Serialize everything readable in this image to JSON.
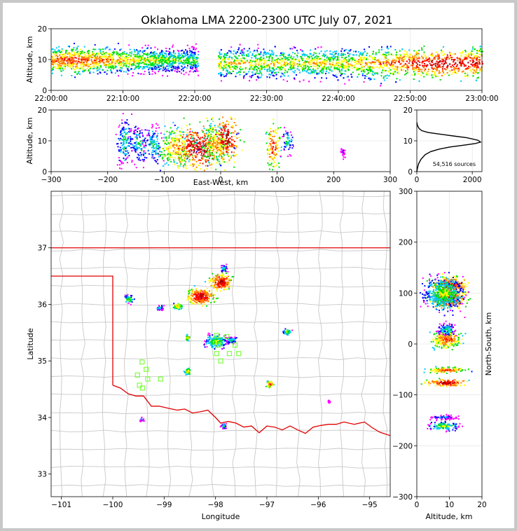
{
  "figure": {
    "title": "Oklahoma LMA 2200-2300 UTC July 07, 2021",
    "sources_label": "54,516 sources"
  },
  "colors": {
    "background": "#ffffff",
    "frame": "#c8c8c8",
    "state_border": "#e00000",
    "county_lines": "#c8c8c8",
    "station_marker": "#7dff40",
    "density_scale": [
      "#ff00ff",
      "#0000ff",
      "#00c8ff",
      "#00e000",
      "#ffff00",
      "#ff8000",
      "#ff0000",
      "#a00000"
    ]
  },
  "chart_data": [
    {
      "id": "time_height",
      "type": "heatmap",
      "xlabel": "",
      "ylabel": "Altitude, km",
      "x_ticks": [
        "22:00:00",
        "22:10:00",
        "22:20:00",
        "22:30:00",
        "22:40:00",
        "22:50:00",
        "23:00:00"
      ],
      "x_minutes": [
        0,
        10,
        20,
        30,
        40,
        50,
        60
      ],
      "xlim_minutes": [
        0,
        60
      ],
      "y_ticks": [
        0,
        10,
        20
      ],
      "ylim": [
        0,
        20
      ],
      "data_gap_minutes": [
        20.4,
        23.2
      ],
      "series": [
        {
          "name": "band 22:00-22:20",
          "t_start": 0,
          "t_end": 20.4,
          "center_km": 10,
          "spread_km": 2.5,
          "peak_minute": 3,
          "peak_level": 6
        },
        {
          "name": "band 22:23-23:00",
          "t_start": 23.2,
          "t_end": 60,
          "center_km": 9,
          "spread_km": 3,
          "peak_minute": 55,
          "peak_level": 7
        }
      ]
    },
    {
      "id": "ew_height",
      "type": "heatmap",
      "xlabel": "East-West, km",
      "ylabel": "Altitude, km",
      "x_ticks": [
        -300,
        -200,
        -100,
        0,
        100,
        200,
        300
      ],
      "xlim": [
        -300,
        300
      ],
      "y_ticks": [
        0,
        10,
        20
      ],
      "ylim": [
        0,
        20
      ],
      "clusters": [
        {
          "x": -170,
          "z": 10,
          "w": 8,
          "h": 4,
          "level": 3
        },
        {
          "x": -145,
          "z": 9,
          "w": 8,
          "h": 3,
          "level": 3
        },
        {
          "x": -120,
          "z": 9,
          "w": 8,
          "h": 3,
          "level": 3
        },
        {
          "x": -80,
          "z": 8,
          "w": 18,
          "h": 3,
          "level": 5
        },
        {
          "x": -40,
          "z": 8,
          "w": 22,
          "h": 3.5,
          "level": 7
        },
        {
          "x": -10,
          "z": 9,
          "w": 15,
          "h": 3,
          "level": 5
        },
        {
          "x": 8,
          "z": 11,
          "w": 12,
          "h": 3.5,
          "level": 7
        },
        {
          "x": 92,
          "z": 9,
          "w": 6,
          "h": 4,
          "level": 6
        },
        {
          "x": 118,
          "z": 10,
          "w": 5,
          "h": 2,
          "level": 3
        },
        {
          "x": 215,
          "z": 6.5,
          "w": 2,
          "h": 1,
          "level": 1
        }
      ]
    },
    {
      "id": "altitude_histogram",
      "type": "line",
      "xlabel": "",
      "ylabel": "",
      "x_ticks": [
        0,
        2000
      ],
      "xlim": [
        0,
        2350
      ],
      "y_ticks": [
        0,
        10,
        20
      ],
      "ylim": [
        0,
        20
      ],
      "x": [
        0,
        20,
        60,
        150,
        300,
        500,
        800,
        1200,
        1700,
        2100,
        2300,
        2200,
        1800,
        1300,
        800,
        400,
        180,
        80,
        30,
        10,
        0
      ],
      "y": [
        0,
        1,
        2.5,
        4,
        5.5,
        6.5,
        7.3,
        8,
        8.6,
        9.1,
        9.6,
        10.2,
        11,
        11.6,
        12.2,
        12.7,
        13.3,
        14,
        14.8,
        15.5,
        16
      ]
    },
    {
      "id": "plan_view",
      "type": "heatmap",
      "xlabel": "Longitude",
      "ylabel": "Latitude",
      "x_ticks": [
        -101,
        -100,
        -99,
        -98,
        -97,
        -96,
        -95
      ],
      "xlim": [
        -101.2,
        -94.6
      ],
      "y_ticks": [
        33,
        34,
        35,
        36,
        37
      ],
      "ylim": [
        32.6,
        38.0
      ],
      "clusters": [
        {
          "lon": -97.9,
          "lat": 36.4,
          "w": 0.18,
          "h": 0.12,
          "level": 7
        },
        {
          "lon": -98.3,
          "lat": 36.15,
          "w": 0.22,
          "h": 0.12,
          "level": 7
        },
        {
          "lon": -97.85,
          "lat": 36.65,
          "w": 0.06,
          "h": 0.06,
          "level": 3
        },
        {
          "lon": -98.75,
          "lat": 35.98,
          "w": 0.08,
          "h": 0.05,
          "level": 5
        },
        {
          "lon": -99.1,
          "lat": 35.95,
          "w": 0.06,
          "h": 0.04,
          "level": 3
        },
        {
          "lon": -98.0,
          "lat": 35.35,
          "w": 0.18,
          "h": 0.1,
          "level": 4
        },
        {
          "lon": -97.7,
          "lat": 35.38,
          "w": 0.1,
          "h": 0.06,
          "level": 3
        },
        {
          "lon": -96.62,
          "lat": 35.52,
          "w": 0.08,
          "h": 0.05,
          "level": 4
        },
        {
          "lon": -98.55,
          "lat": 34.82,
          "w": 0.06,
          "h": 0.05,
          "level": 5
        },
        {
          "lon": -96.95,
          "lat": 34.6,
          "w": 0.06,
          "h": 0.05,
          "level": 6
        },
        {
          "lon": -98.55,
          "lat": 35.42,
          "w": 0.04,
          "h": 0.05,
          "level": 5
        },
        {
          "lon": -99.7,
          "lat": 36.1,
          "w": 0.08,
          "h": 0.06,
          "level": 4
        },
        {
          "lon": -97.85,
          "lat": 33.86,
          "w": 0.05,
          "h": 0.04,
          "level": 3
        },
        {
          "lon": -99.45,
          "lat": 33.98,
          "w": 0.03,
          "h": 0.03,
          "level": 2
        },
        {
          "lon": -95.8,
          "lat": 34.3,
          "w": 0.02,
          "h": 0.03,
          "level": 1
        }
      ],
      "stations": [
        {
          "lon": -97.98,
          "lat": 35.45
        },
        {
          "lon": -97.78,
          "lat": 35.43
        },
        {
          "lon": -97.95,
          "lat": 35.28
        },
        {
          "lon": -97.73,
          "lat": 35.13
        },
        {
          "lon": -97.55,
          "lat": 35.13
        },
        {
          "lon": -97.98,
          "lat": 35.13
        },
        {
          "lon": -97.9,
          "lat": 35.0
        },
        {
          "lon": -97.62,
          "lat": 35.28
        },
        {
          "lon": -99.43,
          "lat": 34.98
        },
        {
          "lon": -99.35,
          "lat": 34.85
        },
        {
          "lon": -99.52,
          "lat": 34.75
        },
        {
          "lon": -99.32,
          "lat": 34.68
        },
        {
          "lon": -99.07,
          "lat": 34.68
        },
        {
          "lon": -99.48,
          "lat": 34.57
        },
        {
          "lon": -99.42,
          "lat": 34.52
        }
      ],
      "state_border_ok": [
        [
          -103,
          37.0
        ],
        [
          -94.6,
          37.0
        ]
      ],
      "panhandle_line": [
        [
          -103,
          36.5
        ],
        [
          -100.0,
          36.5
        ],
        [
          -100.0,
          34.57
        ]
      ],
      "red_river": [
        [
          -100.0,
          34.57
        ],
        [
          -99.85,
          34.52
        ],
        [
          -99.7,
          34.42
        ],
        [
          -99.55,
          34.38
        ],
        [
          -99.4,
          34.38
        ],
        [
          -99.25,
          34.2
        ],
        [
          -99.1,
          34.2
        ],
        [
          -98.95,
          34.17
        ],
        [
          -98.75,
          34.13
        ],
        [
          -98.6,
          34.15
        ],
        [
          -98.45,
          34.08
        ],
        [
          -98.3,
          34.1
        ],
        [
          -98.15,
          34.13
        ],
        [
          -98.0,
          34.0
        ],
        [
          -97.9,
          33.9
        ],
        [
          -97.75,
          33.93
        ],
        [
          -97.6,
          33.9
        ],
        [
          -97.45,
          33.83
        ],
        [
          -97.3,
          33.85
        ],
        [
          -97.15,
          33.73
        ],
        [
          -97.0,
          33.85
        ],
        [
          -96.85,
          33.83
        ],
        [
          -96.7,
          33.78
        ],
        [
          -96.55,
          33.85
        ],
        [
          -96.4,
          33.78
        ],
        [
          -96.25,
          33.72
        ],
        [
          -96.1,
          33.83
        ],
        [
          -95.95,
          33.86
        ],
        [
          -95.8,
          33.88
        ],
        [
          -95.65,
          33.88
        ],
        [
          -95.5,
          33.92
        ],
        [
          -95.3,
          33.88
        ],
        [
          -95.1,
          33.92
        ],
        [
          -94.95,
          33.82
        ],
        [
          -94.8,
          33.74
        ],
        [
          -94.6,
          33.68
        ]
      ]
    },
    {
      "id": "ns_height",
      "type": "heatmap",
      "xlabel": "Altitude, km",
      "ylabel": "North-South, km",
      "x_ticks": [
        0,
        10,
        20
      ],
      "xlim": [
        0,
        20
      ],
      "y_ticks": [
        -300,
        -200,
        -100,
        0,
        100,
        200,
        300
      ],
      "ylim": [
        -300,
        300
      ],
      "clusters": [
        {
          "z": 10,
          "y": 115,
          "w": 3.5,
          "h": 12,
          "level": 7
        },
        {
          "z": 9.5,
          "y": 90,
          "w": 3.5,
          "h": 12,
          "level": 7
        },
        {
          "z": 8,
          "y": 100,
          "w": 4,
          "h": 22,
          "level": 4
        },
        {
          "z": 9,
          "y": 10,
          "w": 3,
          "h": 12,
          "level": 6
        },
        {
          "z": 9,
          "y": 30,
          "w": 2,
          "h": 8,
          "level": 3
        },
        {
          "z": 9,
          "y": -50,
          "w": 4,
          "h": 4,
          "level": 6
        },
        {
          "z": 9,
          "y": -75,
          "w": 4,
          "h": 5,
          "level": 7
        },
        {
          "z": 8,
          "y": -160,
          "w": 3,
          "h": 6,
          "level": 4
        },
        {
          "z": 8,
          "y": -143,
          "w": 3,
          "h": 3,
          "level": 2
        }
      ]
    }
  ]
}
